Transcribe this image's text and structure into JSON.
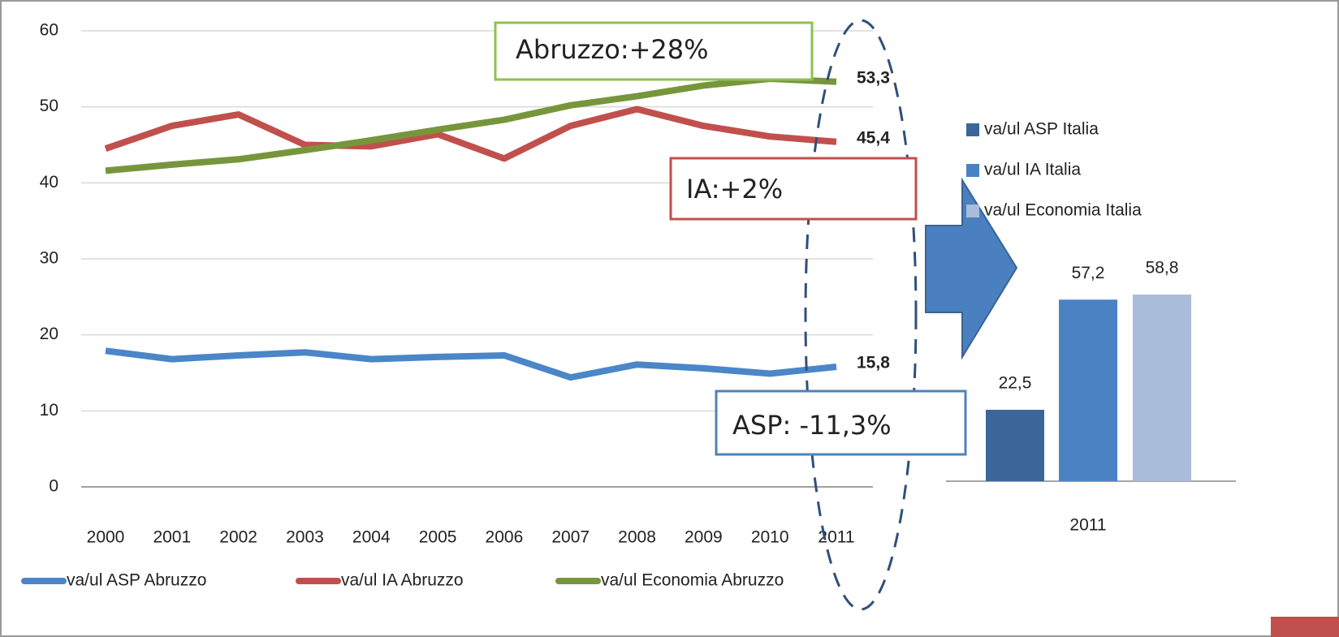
{
  "chart_data": [
    {
      "type": "line",
      "categories": [
        "2000",
        "2001",
        "2002",
        "2003",
        "2004",
        "2005",
        "2006",
        "2007",
        "2008",
        "2009",
        "2010",
        "2011"
      ],
      "ylim": [
        0,
        60
      ],
      "yticks": [
        0,
        10,
        20,
        30,
        40,
        50,
        60
      ],
      "grid": true,
      "series": [
        {
          "name": "va/ul ASP Abruzzo",
          "color": "#4a86c8",
          "values": [
            17.9,
            16.8,
            17.3,
            17.7,
            16.8,
            17.1,
            17.3,
            14.4,
            16.1,
            15.6,
            14.9,
            15.8
          ],
          "value_labels": [
            null,
            null,
            null,
            null,
            null,
            null,
            null,
            null,
            null,
            null,
            null,
            "15,8"
          ]
        },
        {
          "name": "va/ul IA Abruzzo",
          "color": "#c0504d",
          "values": [
            44.5,
            47.5,
            49.0,
            45.0,
            44.8,
            46.4,
            43.2,
            47.5,
            49.7,
            47.5,
            46.1,
            45.4
          ],
          "value_labels": [
            null,
            null,
            null,
            null,
            null,
            null,
            null,
            null,
            null,
            null,
            null,
            "45,4"
          ]
        },
        {
          "name": "va/ul Economia Abruzzo",
          "color": "#77963c",
          "values": [
            41.6,
            42.4,
            43.1,
            44.3,
            45.6,
            47.0,
            48.3,
            50.2,
            51.4,
            52.8,
            53.7,
            53.3
          ],
          "value_labels": [
            null,
            null,
            null,
            null,
            null,
            null,
            null,
            null,
            null,
            null,
            null,
            "53,3"
          ]
        }
      ],
      "annotations": [
        {
          "text": "Abruzzo:+28%",
          "color": "#00a651",
          "border": "#8dc153"
        },
        {
          "text": "IA:+2%",
          "color": "#8b2500",
          "border": "#c0504d"
        },
        {
          "text": "ASP: -11,3%",
          "color": "#1f2d4d",
          "border": "#4f81bd"
        }
      ]
    },
    {
      "type": "bar",
      "categories": [
        "2011"
      ],
      "series": [
        {
          "name": "va/ul ASP Italia",
          "color": "#3b6699",
          "values": [
            22.5
          ],
          "value_labels": [
            "22,5"
          ]
        },
        {
          "name": "va/ul IA Italia",
          "color": "#4a82c4",
          "values": [
            57.2
          ],
          "value_labels": [
            "57,2"
          ]
        },
        {
          "name": "va/ul Economia Italia",
          "color": "#a9bcd9",
          "values": [
            58.8
          ],
          "value_labels": [
            "58,8"
          ]
        }
      ]
    }
  ]
}
